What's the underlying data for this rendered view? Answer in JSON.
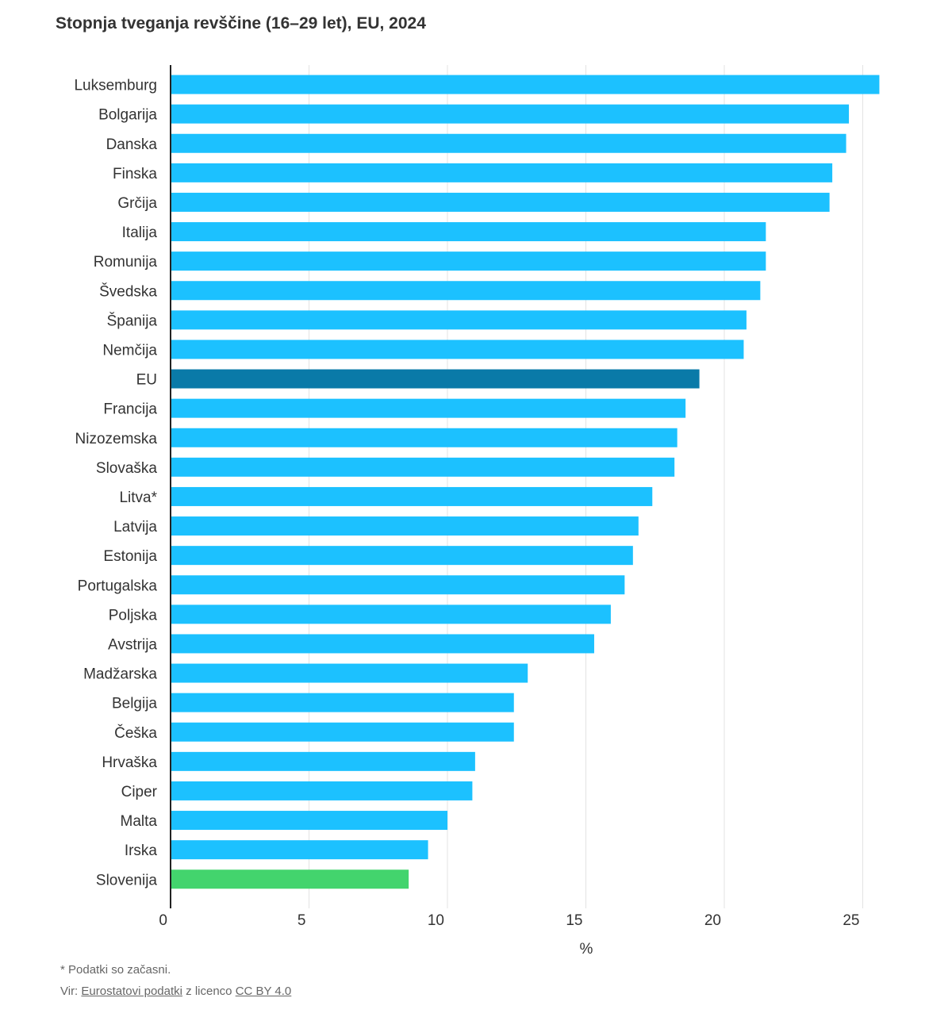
{
  "chart_data": {
    "type": "bar",
    "orientation": "horizontal",
    "title": "Stopnja tveganja revščine (16–29 let), EU, 2024",
    "xlabel": "%",
    "xlim": [
      0,
      26
    ],
    "xticks": [
      0,
      5,
      10,
      15,
      20,
      25
    ],
    "categories": [
      "Luksemburg",
      "Bolgarija",
      "Danska",
      "Finska",
      "Grčija",
      "Italija",
      "Romunija",
      "Švedska",
      "Španija",
      "Nemčija",
      "EU",
      "Francija",
      "Nizozemska",
      "Slovaška",
      "Litva*",
      "Latvija",
      "Estonija",
      "Portugalska",
      "Poljska",
      "Avstrija",
      "Madžarska",
      "Belgija",
      "Češka",
      "Hrvaška",
      "Ciper",
      "Malta",
      "Irska",
      "Slovenija"
    ],
    "values": [
      25.6,
      24.5,
      24.4,
      23.9,
      23.8,
      21.5,
      21.5,
      21.3,
      20.8,
      20.7,
      19.1,
      18.6,
      18.3,
      18.2,
      17.4,
      16.9,
      16.7,
      16.4,
      15.9,
      15.3,
      12.9,
      12.4,
      12.4,
      11.0,
      10.9,
      10.0,
      9.3,
      8.6
    ],
    "bar_colors": {
      "default": "#1cc1ff",
      "EU": "#0a7aa8",
      "Slovenija": "#43d46d"
    },
    "grid": true,
    "legend": "none"
  },
  "footnote": "* Podatki so začasni.",
  "source": {
    "prefix": "Vir: ",
    "link1": "Eurostatovi podatki",
    "middle": " z licenco ",
    "link2": "CC BY 4.0"
  }
}
